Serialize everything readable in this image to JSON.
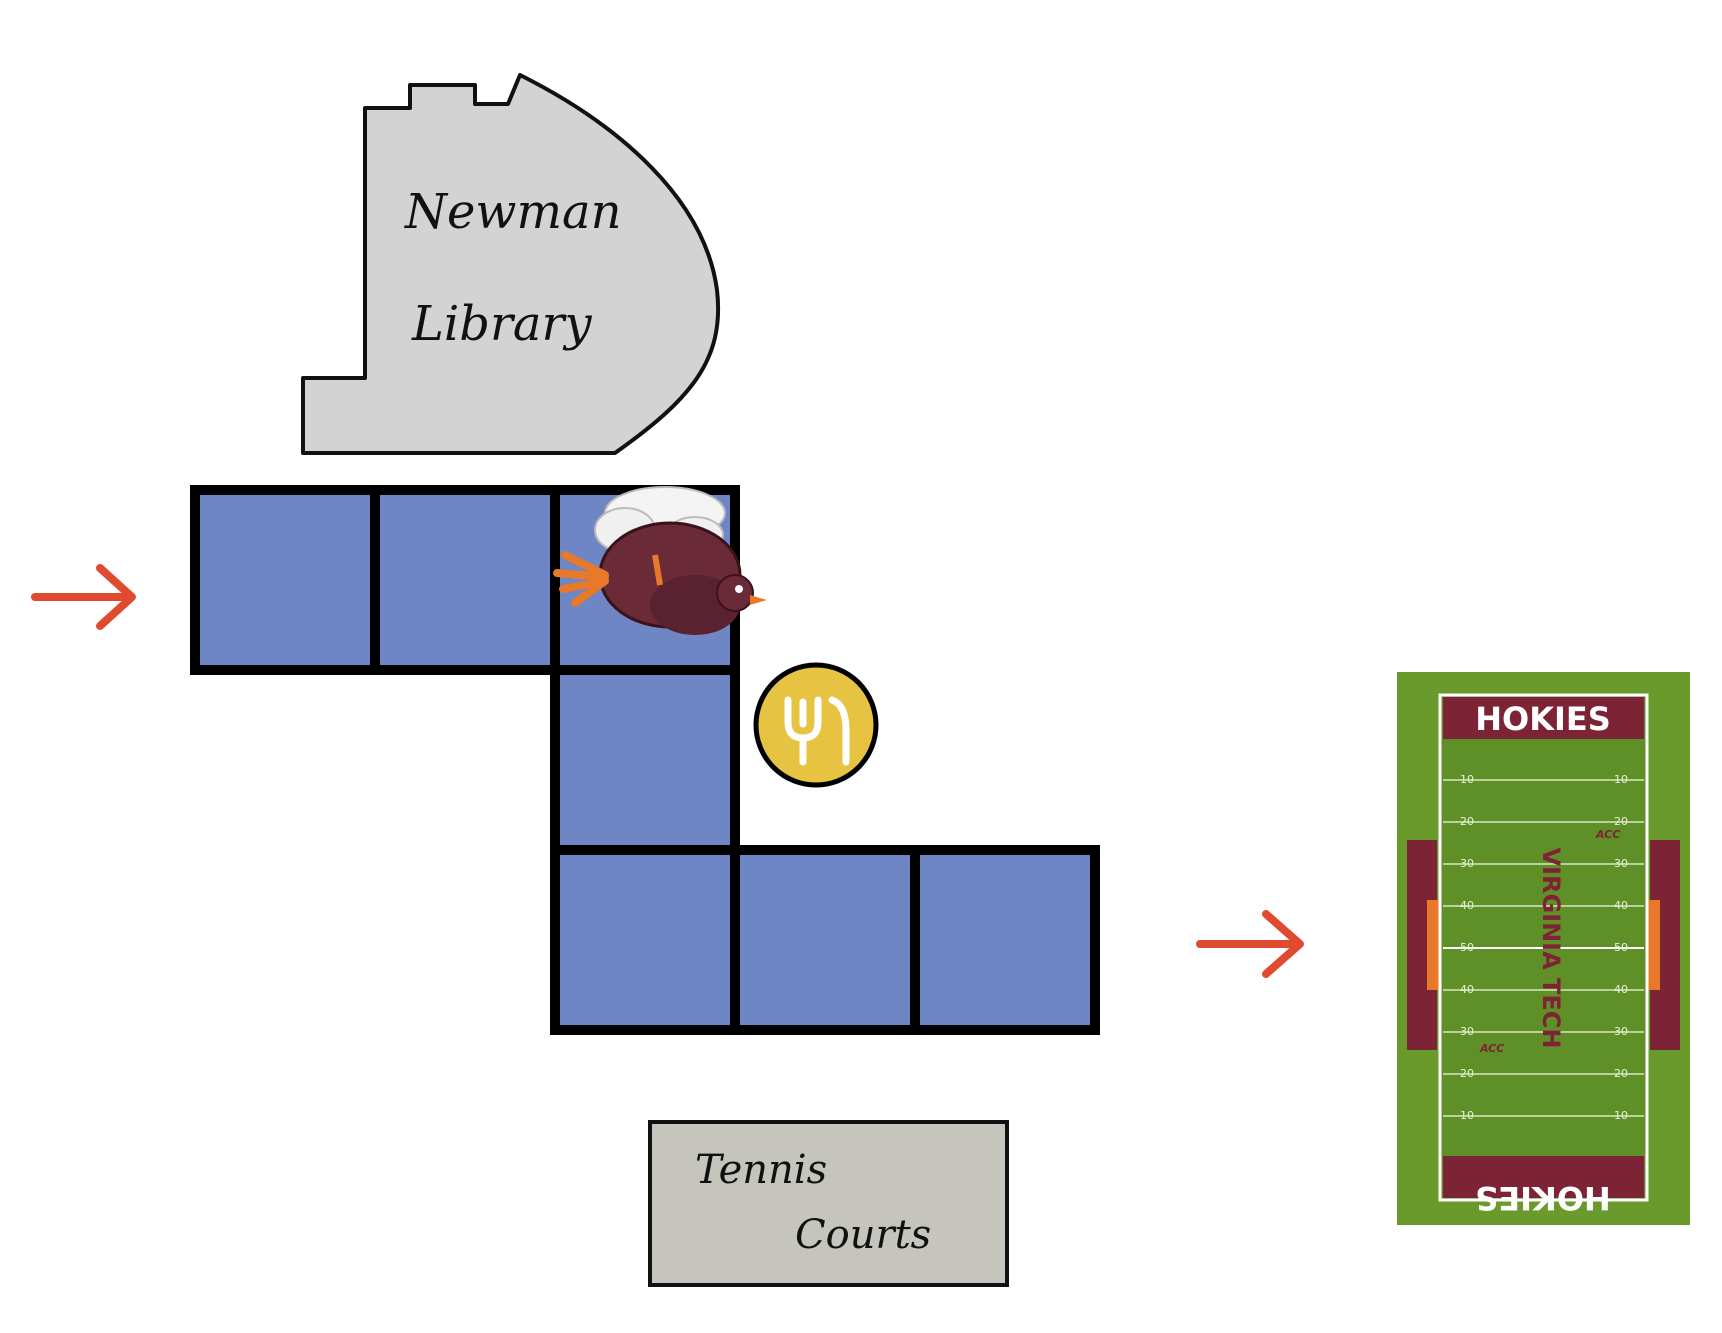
{
  "landmarks": {
    "library": {
      "line1": "Newman",
      "line2": "Library"
    },
    "tennis": {
      "line1": "Tennis",
      "line2": "Courts"
    },
    "stadium": {
      "top_endzone": "HOKIES",
      "bottom_endzone": "HOKIES",
      "midfield": "VIRGINIA TECH",
      "conference": "ACC",
      "yard_lines": [
        "10",
        "20",
        "30",
        "40",
        "50",
        "40",
        "30",
        "20",
        "10"
      ]
    }
  },
  "path": {
    "tiles": [
      {
        "id": "tile-1",
        "has_player": false
      },
      {
        "id": "tile-2",
        "has_player": false
      },
      {
        "id": "tile-3",
        "has_player": true
      },
      {
        "id": "tile-4",
        "has_player": false
      },
      {
        "id": "tile-5",
        "has_player": false
      },
      {
        "id": "tile-6",
        "has_player": false
      },
      {
        "id": "tile-7",
        "has_player": false
      }
    ]
  },
  "pickup": {
    "icon": "fork-knife-icon"
  },
  "arrows": {
    "entry": "arrow-right-icon",
    "exit": "arrow-right-icon"
  },
  "player": {
    "icon": "hokiebird-icon"
  },
  "colors": {
    "tile": "#6e86c4",
    "tile_border": "#000000",
    "library": "#d3d3d3",
    "tennis": "#c5c4bd",
    "arrow": "#e04a2f",
    "coin": "#e6c340",
    "turf": "#6a9a2c",
    "maroon": "#7d2336",
    "orange": "#e8792b"
  }
}
